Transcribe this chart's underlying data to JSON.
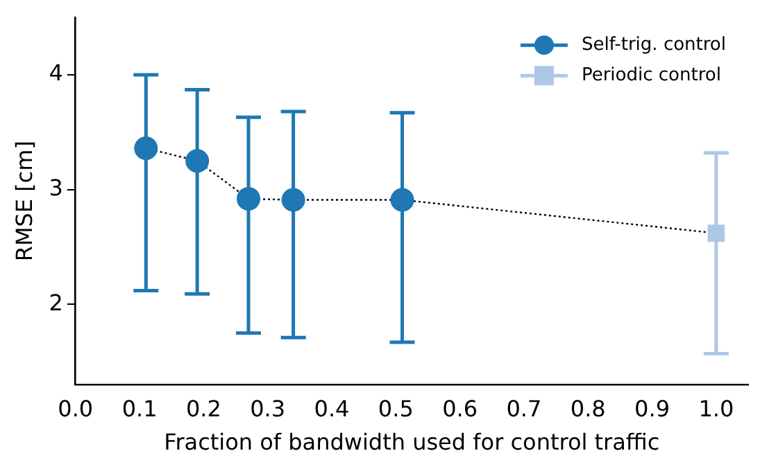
{
  "chart_data": {
    "type": "scatter",
    "xlabel": "Fraction of bandwidth used for control traffic",
    "ylabel": "RMSE [cm]",
    "xlim": [
      0,
      1.05
    ],
    "ylim": [
      1.3,
      4.5
    ],
    "xticks": [
      {
        "value": 0,
        "label": "0.0"
      },
      {
        "value": 0.1,
        "label": "0.1"
      },
      {
        "value": 0.2,
        "label": "0.2"
      },
      {
        "value": 0.3,
        "label": "0.3"
      },
      {
        "value": 0.4,
        "label": "0.4"
      },
      {
        "value": 0.5,
        "label": "0.5"
      },
      {
        "value": 0.6,
        "label": "0.6"
      },
      {
        "value": 0.7,
        "label": "0.7"
      },
      {
        "value": 0.8,
        "label": "0.8"
      },
      {
        "value": 0.9,
        "label": "0.9"
      },
      {
        "value": 1,
        "label": "1.0"
      }
    ],
    "yticks": [
      2,
      3,
      4
    ],
    "grid": false,
    "legend": "top right",
    "series": [
      {
        "type": "line",
        "color": "#000000",
        "line_style": "dotted",
        "marker": "none",
        "x": [
          0.11,
          0.19,
          0.27,
          0.34,
          0.51,
          1.0
        ],
        "values": [
          3.36,
          3.25,
          2.92,
          2.91,
          2.91,
          2.62
        ]
      },
      {
        "name": "Self-trig. control",
        "color": "#1f77b4",
        "marker": "circle",
        "x": [
          0.11,
          0.19,
          0.27,
          0.34,
          0.51
        ],
        "values": [
          3.36,
          3.25,
          2.92,
          2.91,
          2.91
        ],
        "errors": [
          [
            2.12,
            4.0
          ],
          [
            2.09,
            3.87
          ],
          [
            1.75,
            3.63
          ],
          [
            1.71,
            3.68
          ],
          [
            1.67,
            3.67
          ]
        ]
      },
      {
        "name": "Periodic control",
        "color": "#aec7e8",
        "marker": "square",
        "x": [
          1.0
        ],
        "values": [
          2.62
        ],
        "errors": [
          [
            1.57,
            3.32
          ]
        ]
      }
    ]
  }
}
